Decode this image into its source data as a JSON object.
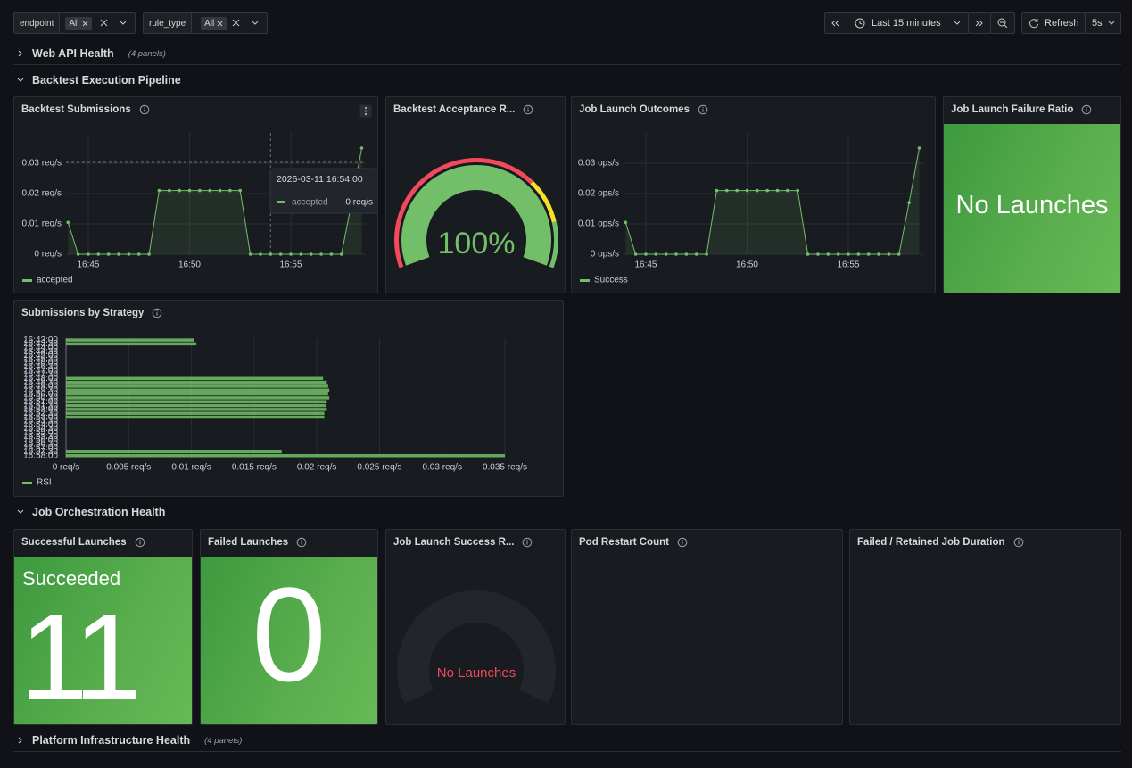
{
  "toolbar": {
    "variables": [
      {
        "label": "endpoint",
        "value": "All"
      },
      {
        "label": "rule_type",
        "value": "All"
      }
    ],
    "time_range": "Last 15 minutes",
    "refresh_label": "Refresh",
    "refresh_interval": "5s"
  },
  "rows": [
    {
      "title": "Web API Health",
      "note": "(4 panels)"
    },
    {
      "title": "Backtest Execution Pipeline"
    },
    {
      "title": "Job Orchestration Health"
    },
    {
      "title": "Platform Infrastructure Health",
      "note": "(4 panels)"
    }
  ],
  "panels": {
    "backtest_submissions": {
      "title": "Backtest Submissions",
      "chart_data": {
        "type": "line",
        "x": [
          "16:44:00",
          "16:44:30",
          "16:45:00",
          "16:45:30",
          "16:46:00",
          "16:46:30",
          "16:47:00",
          "16:47:30",
          "16:48:00",
          "16:48:30",
          "16:49:00",
          "16:49:30",
          "16:50:00",
          "16:50:30",
          "16:51:00",
          "16:51:30",
          "16:52:00",
          "16:52:30",
          "16:53:00",
          "16:53:30",
          "16:54:00",
          "16:54:30",
          "16:55:00",
          "16:55:30",
          "16:56:00",
          "16:56:30",
          "16:57:00",
          "16:57:30",
          "16:58:00",
          "16:58:30"
        ],
        "series": [
          {
            "name": "accepted",
            "color": "#73bf69",
            "values": [
              0.0105,
              0,
              0,
              0,
              0,
              0,
              0,
              0,
              0,
              0.021,
              0.021,
              0.021,
              0.021,
              0.021,
              0.021,
              0.021,
              0.021,
              0.021,
              0,
              0,
              0,
              0,
              0,
              0,
              0,
              0,
              0,
              0,
              0.017,
              0.035
            ]
          }
        ],
        "xlim": [
          "16:43:54",
          "16:58:42"
        ],
        "xticks": [
          {
            "value": "16:45:00",
            "label": "16:45"
          },
          {
            "value": "16:50:00",
            "label": "16:50"
          },
          {
            "value": "16:55:00",
            "label": "16:55"
          }
        ],
        "ylim": [
          0,
          0.04
        ],
        "yticks": [
          {
            "value": 0,
            "label": "0 req/s"
          },
          {
            "value": 0.01,
            "label": "0.01 req/s"
          },
          {
            "value": 0.02,
            "label": "0.02 req/s"
          },
          {
            "value": 0.03,
            "label": "0.03 req/s"
          }
        ],
        "grid": true,
        "legend": "bottom"
      },
      "tooltip": {
        "time": "2026-03-11 16:54:00",
        "series": "accepted",
        "value_label": "0 req/s"
      }
    },
    "acceptance_rate": {
      "title": "Backtest Acceptance R...",
      "chart_data": {
        "type": "gauge",
        "value": 100,
        "value_label": "100%",
        "min": 0,
        "max": 100,
        "color": "#73bf69",
        "thresholds": [
          {
            "value": 0,
            "color": "#f2495c"
          },
          {
            "value": 70,
            "color": "#fade2a"
          },
          {
            "value": 85,
            "color": "#73bf69"
          }
        ]
      }
    },
    "job_launch_outcomes": {
      "title": "Job Launch Outcomes",
      "chart_data": {
        "type": "line",
        "x": [
          "16:44:00",
          "16:44:30",
          "16:45:00",
          "16:45:30",
          "16:46:00",
          "16:46:30",
          "16:47:00",
          "16:47:30",
          "16:48:00",
          "16:48:30",
          "16:49:00",
          "16:49:30",
          "16:50:00",
          "16:50:30",
          "16:51:00",
          "16:51:30",
          "16:52:00",
          "16:52:30",
          "16:53:00",
          "16:53:30",
          "16:54:00",
          "16:54:30",
          "16:55:00",
          "16:55:30",
          "16:56:00",
          "16:56:30",
          "16:57:00",
          "16:57:30",
          "16:58:00",
          "16:58:30"
        ],
        "series": [
          {
            "name": "Success",
            "color": "#73bf69",
            "values": [
              0.0105,
              0,
              0,
              0,
              0,
              0,
              0,
              0,
              0,
              0.021,
              0.021,
              0.021,
              0.021,
              0.021,
              0.021,
              0.021,
              0.021,
              0.021,
              0,
              0,
              0,
              0,
              0,
              0,
              0,
              0,
              0,
              0,
              0.017,
              0.035
            ]
          }
        ],
        "xlim": [
          "16:43:54",
          "16:58:42"
        ],
        "xticks": [
          {
            "value": "16:45:00",
            "label": "16:45"
          },
          {
            "value": "16:50:00",
            "label": "16:50"
          },
          {
            "value": "16:55:00",
            "label": "16:55"
          }
        ],
        "ylim": [
          0,
          0.04
        ],
        "yticks": [
          {
            "value": 0,
            "label": "0 ops/s"
          },
          {
            "value": 0.01,
            "label": "0.01 ops/s"
          },
          {
            "value": 0.02,
            "label": "0.02 ops/s"
          },
          {
            "value": 0.03,
            "label": "0.03 ops/s"
          }
        ],
        "grid": true,
        "legend": "bottom"
      }
    },
    "failure_ratio": {
      "title": "Job Launch Failure Ratio",
      "text": "No Launches"
    },
    "submissions_by_strategy": {
      "title": "Submissions by Strategy",
      "chart_data": {
        "type": "bar",
        "orientation": "horizontal",
        "categories": [
          "16:43:00",
          "16:43:30",
          "16:44:00",
          "16:44:30",
          "16:45:00",
          "16:45:30",
          "16:46:00",
          "16:46:30",
          "16:47:00",
          "16:47:30",
          "16:48:00",
          "16:48:30",
          "16:49:00",
          "16:49:30",
          "16:50:00",
          "16:50:30",
          "16:51:00",
          "16:51:30",
          "16:52:00",
          "16:52:30",
          "16:53:00",
          "16:53:30",
          "16:54:00",
          "16:54:30",
          "16:55:00",
          "16:55:30",
          "16:56:00",
          "16:56:30",
          "16:57:00",
          "16:57:30",
          "16:58:00"
        ],
        "series": [
          {
            "name": "RSI",
            "color": "#73bf69",
            "values": [
              0.0102,
              0.0104,
              0,
              0,
              0,
              0,
              0,
              0,
              0,
              0,
              0.0205,
              0.0208,
              0.0209,
              0.021,
              0.0209,
              0.021,
              0.0208,
              0.0207,
              0.0208,
              0.0206,
              0.0206,
              0,
              0,
              0,
              0,
              0,
              0,
              0,
              0,
              0.0172,
              0.035
            ]
          }
        ],
        "xlim": [
          0,
          0.035
        ],
        "xticks": [
          {
            "value": 0,
            "label": "0 req/s"
          },
          {
            "value": 0.005,
            "label": "0.005 req/s"
          },
          {
            "value": 0.01,
            "label": "0.01 req/s"
          },
          {
            "value": 0.015,
            "label": "0.015 req/s"
          },
          {
            "value": 0.02,
            "label": "0.02 req/s"
          },
          {
            "value": 0.025,
            "label": "0.025 req/s"
          },
          {
            "value": 0.03,
            "label": "0.03 req/s"
          },
          {
            "value": 0.035,
            "label": "0.035 req/s"
          }
        ],
        "grid": true,
        "legend": "bottom"
      }
    },
    "successful_launches": {
      "title": "Successful Launches",
      "label": "Succeeded",
      "value": 11
    },
    "failed_launches": {
      "title": "Failed Launches",
      "value": 0
    },
    "launch_success_rate": {
      "title": "Job Launch Success R...",
      "text": "No Launches"
    },
    "pod_restart_count": {
      "title": "Pod Restart Count"
    },
    "failed_retained_duration": {
      "title": "Failed / Retained Job Duration"
    }
  }
}
